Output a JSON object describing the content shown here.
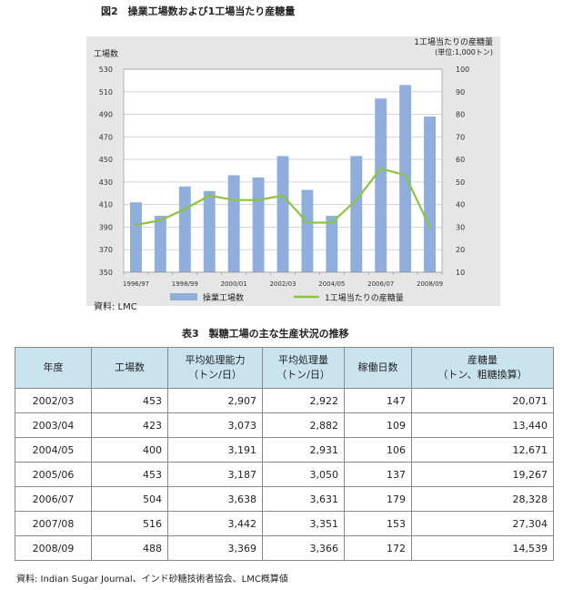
{
  "figure_title": "図2　操業工場数および1工場当たり産糖量",
  "chart_data": {
    "type": "bar+line",
    "title": "図2　操業工場数および1工場当たり産糖量",
    "y_left_label": "工場数",
    "y_right_label": "1工場当たりの産糖量",
    "y_right_unit": "(単位:1,000トン)",
    "ylim_left": [
      350,
      530
    ],
    "ylim_right": [
      10,
      100
    ],
    "y_left_ticks": [
      350,
      370,
      390,
      410,
      430,
      450,
      470,
      490,
      510,
      530
    ],
    "y_right_ticks": [
      10,
      20,
      30,
      40,
      50,
      60,
      70,
      80,
      90,
      100
    ],
    "x_tick_labels": [
      "1996/97",
      "1998/99",
      "2000/01",
      "2002/03",
      "2004/05",
      "2006/07",
      "2008/09"
    ],
    "x_ticks_at": [
      0,
      2,
      4,
      6,
      8,
      10,
      12
    ],
    "bar_series": {
      "name": "操業工場数",
      "color": "#8faedc",
      "values": [
        412,
        400,
        426,
        422,
        436,
        434,
        453,
        423,
        400,
        453,
        504,
        516,
        488
      ]
    },
    "line_series": {
      "name": "1工場当たりの産糖量",
      "color": "#8cc43f",
      "values": [
        31,
        33,
        38,
        44,
        42,
        42,
        44,
        32,
        32,
        42,
        56,
        53,
        30
      ]
    },
    "grid": true,
    "legend": "bottom"
  },
  "source1": "資料: LMC",
  "table_title": "表3　製糖工場の主な生産状況の推移",
  "table": {
    "headers": [
      [
        "年度"
      ],
      [
        "工場数"
      ],
      [
        "平均処理能力",
        "（トン/日）"
      ],
      [
        "平均処理量",
        "（トン/日）"
      ],
      [
        "稼働日数"
      ],
      [
        "産糖量",
        "（トン、粗糖換算）"
      ]
    ],
    "rows": [
      [
        "2002/03",
        "453",
        "2,907",
        "2,922",
        "147",
        "20,071"
      ],
      [
        "2003/04",
        "423",
        "3,073",
        "2,882",
        "109",
        "13,440"
      ],
      [
        "2004/05",
        "400",
        "3,191",
        "2,931",
        "106",
        "12,671"
      ],
      [
        "2005/06",
        "453",
        "3,187",
        "3,050",
        "137",
        "19,267"
      ],
      [
        "2006/07",
        "504",
        "3,638",
        "3,631",
        "179",
        "28,328"
      ],
      [
        "2007/08",
        "516",
        "3,442",
        "3,351",
        "153",
        "27,304"
      ],
      [
        "2008/09",
        "488",
        "3,369",
        "3,366",
        "172",
        "14,539"
      ]
    ]
  },
  "source2": "資料: Indian Sugar Journal、インド砂糖技術者協会、LMC概算値"
}
